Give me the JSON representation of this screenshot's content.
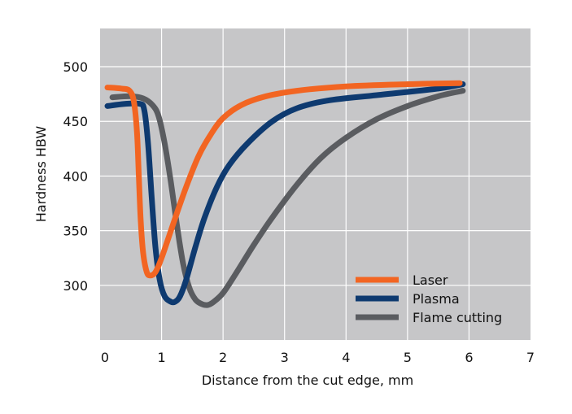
{
  "chart_data": {
    "type": "line",
    "title": "",
    "xlabel": "Distance from the cut edge, mm",
    "ylabel": "Hardness HBW",
    "xlim": [
      0,
      7
    ],
    "ylim": [
      250,
      535
    ],
    "x_ticks": [
      0,
      1,
      2,
      3,
      4,
      5,
      6,
      7
    ],
    "y_ticks": [
      300,
      350,
      400,
      450,
      500
    ],
    "grid": true,
    "legend_position": "bottom-right",
    "background_color": "#c6c6c8",
    "grid_color": "#ffffff",
    "series": [
      {
        "name": "Laser",
        "color": "#f26522",
        "points": [
          [
            0.12,
            481
          ],
          [
            0.35,
            480
          ],
          [
            0.48,
            478
          ],
          [
            0.55,
            468
          ],
          [
            0.6,
            440
          ],
          [
            0.63,
            400
          ],
          [
            0.66,
            360
          ],
          [
            0.7,
            330
          ],
          [
            0.76,
            312
          ],
          [
            0.82,
            309
          ],
          [
            0.9,
            312
          ],
          [
            1.0,
            325
          ],
          [
            1.2,
            358
          ],
          [
            1.4,
            390
          ],
          [
            1.6,
            418
          ],
          [
            1.8,
            438
          ],
          [
            2.0,
            453
          ],
          [
            2.3,
            465
          ],
          [
            2.7,
            473
          ],
          [
            3.2,
            478
          ],
          [
            4.0,
            482
          ],
          [
            5.0,
            484
          ],
          [
            5.85,
            485
          ]
        ]
      },
      {
        "name": "Plasma",
        "color": "#0e3a70",
        "points": [
          [
            0.12,
            464
          ],
          [
            0.4,
            466
          ],
          [
            0.65,
            466
          ],
          [
            0.72,
            460
          ],
          [
            0.78,
            430
          ],
          [
            0.84,
            380
          ],
          [
            0.9,
            335
          ],
          [
            0.97,
            305
          ],
          [
            1.05,
            290
          ],
          [
            1.15,
            285
          ],
          [
            1.22,
            285
          ],
          [
            1.3,
            290
          ],
          [
            1.4,
            305
          ],
          [
            1.55,
            335
          ],
          [
            1.7,
            362
          ],
          [
            1.9,
            390
          ],
          [
            2.1,
            410
          ],
          [
            2.4,
            430
          ],
          [
            2.8,
            450
          ],
          [
            3.2,
            462
          ],
          [
            3.7,
            469
          ],
          [
            4.5,
            474
          ],
          [
            5.5,
            480
          ],
          [
            5.9,
            484
          ]
        ]
      },
      {
        "name": "Flame cutting",
        "color": "#5a5c60",
        "points": [
          [
            0.2,
            472
          ],
          [
            0.5,
            473
          ],
          [
            0.7,
            471
          ],
          [
            0.85,
            465
          ],
          [
            0.95,
            455
          ],
          [
            1.05,
            430
          ],
          [
            1.15,
            395
          ],
          [
            1.25,
            355
          ],
          [
            1.35,
            320
          ],
          [
            1.45,
            298
          ],
          [
            1.55,
            287
          ],
          [
            1.65,
            283
          ],
          [
            1.75,
            282
          ],
          [
            1.85,
            285
          ],
          [
            2.0,
            293
          ],
          [
            2.2,
            310
          ],
          [
            2.5,
            337
          ],
          [
            2.8,
            362
          ],
          [
            3.2,
            392
          ],
          [
            3.6,
            417
          ],
          [
            4.0,
            435
          ],
          [
            4.5,
            452
          ],
          [
            5.0,
            464
          ],
          [
            5.5,
            473
          ],
          [
            5.9,
            478
          ]
        ]
      }
    ]
  }
}
